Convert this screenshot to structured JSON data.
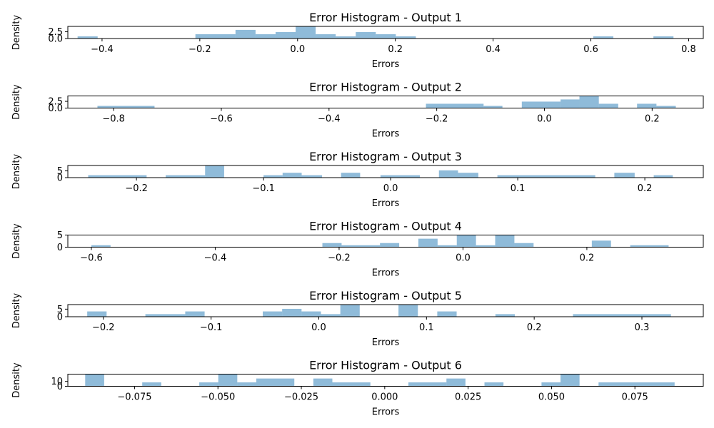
{
  "chart_data": [
    {
      "type": "bar",
      "title": "Error Histogram - Output 1",
      "xlabel": "Errors",
      "ylabel": "Density",
      "xlim": [
        -0.47,
        0.83
      ],
      "ylim": [
        0,
        4.5
      ],
      "xticks": [
        {
          "value": -0.4,
          "label": "−0.4"
        },
        {
          "value": -0.2,
          "label": "−0.2"
        },
        {
          "value": 0.0,
          "label": "0.0"
        },
        {
          "value": 0.2,
          "label": "0.2"
        },
        {
          "value": 0.4,
          "label": "0.4"
        },
        {
          "value": 0.6,
          "label": "0.6"
        },
        {
          "value": 0.8,
          "label": "0.8"
        }
      ],
      "yticks": [
        {
          "value": 0,
          "label": "0.0"
        },
        {
          "value": 2.5,
          "label": "2.5"
        }
      ],
      "bins": [
        {
          "x0": -0.45,
          "x1": -0.409,
          "y": 0.8
        },
        {
          "x0": -0.209,
          "x1": -0.127,
          "y": 1.6
        },
        {
          "x0": -0.127,
          "x1": -0.086,
          "y": 3.2
        },
        {
          "x0": -0.086,
          "x1": -0.045,
          "y": 1.6
        },
        {
          "x0": -0.045,
          "x1": -0.004,
          "y": 2.4
        },
        {
          "x0": -0.004,
          "x1": 0.037,
          "y": 4.5
        },
        {
          "x0": 0.037,
          "x1": 0.078,
          "y": 1.6
        },
        {
          "x0": 0.078,
          "x1": 0.119,
          "y": 0.8
        },
        {
          "x0": 0.119,
          "x1": 0.16,
          "y": 2.4
        },
        {
          "x0": 0.16,
          "x1": 0.201,
          "y": 1.6
        },
        {
          "x0": 0.201,
          "x1": 0.242,
          "y": 0.8
        },
        {
          "x0": 0.605,
          "x1": 0.646,
          "y": 0.8
        },
        {
          "x0": 0.728,
          "x1": 0.769,
          "y": 0.8
        }
      ]
    },
    {
      "type": "bar",
      "title": "Error Histogram - Output 2",
      "xlabel": "Errors",
      "ylabel": "Density",
      "xlim": [
        -0.885,
        0.295
      ],
      "ylim": [
        0,
        4.5
      ],
      "xticks": [
        {
          "value": -0.8,
          "label": "−0.8"
        },
        {
          "value": -0.6,
          "label": "−0.6"
        },
        {
          "value": -0.4,
          "label": "−0.4"
        },
        {
          "value": -0.2,
          "label": "−0.2"
        },
        {
          "value": 0.0,
          "label": "0.0"
        },
        {
          "value": 0.2,
          "label": "0.2"
        }
      ],
      "yticks": [
        {
          "value": 0,
          "label": "0.0"
        },
        {
          "value": 2.5,
          "label": "2.5"
        }
      ],
      "bins": [
        {
          "x0": -0.83,
          "x1": -0.724,
          "y": 0.8
        },
        {
          "x0": -0.22,
          "x1": -0.113,
          "y": 1.6
        },
        {
          "x0": -0.113,
          "x1": -0.078,
          "y": 0.8
        },
        {
          "x0": -0.042,
          "x1": 0.03,
          "y": 2.4
        },
        {
          "x0": 0.03,
          "x1": 0.065,
          "y": 3.2
        },
        {
          "x0": 0.065,
          "x1": 0.101,
          "y": 4.5
        },
        {
          "x0": 0.101,
          "x1": 0.137,
          "y": 1.6
        },
        {
          "x0": 0.172,
          "x1": 0.208,
          "y": 1.6
        },
        {
          "x0": 0.208,
          "x1": 0.244,
          "y": 0.8
        }
      ]
    },
    {
      "type": "bar",
      "title": "Error Histogram - Output 3",
      "xlabel": "Errors",
      "ylabel": "Density",
      "xlim": [
        -0.254,
        0.246
      ],
      "ylim": [
        0,
        9
      ],
      "xticks": [
        {
          "value": -0.2,
          "label": "−0.2"
        },
        {
          "value": -0.1,
          "label": "−0.1"
        },
        {
          "value": 0.0,
          "label": "0.0"
        },
        {
          "value": 0.1,
          "label": "0.1"
        },
        {
          "value": 0.2,
          "label": "0.2"
        }
      ],
      "yticks": [
        {
          "value": 0,
          "label": "0"
        },
        {
          "value": 5,
          "label": "5"
        }
      ],
      "bins": [
        {
          "x0": -0.238,
          "x1": -0.192,
          "y": 1.8
        },
        {
          "x0": -0.177,
          "x1": -0.146,
          "y": 1.8
        },
        {
          "x0": -0.146,
          "x1": -0.131,
          "y": 9
        },
        {
          "x0": -0.1,
          "x1": -0.085,
          "y": 1.8
        },
        {
          "x0": -0.085,
          "x1": -0.07,
          "y": 3.6
        },
        {
          "x0": -0.07,
          "x1": -0.054,
          "y": 1.8
        },
        {
          "x0": -0.039,
          "x1": -0.024,
          "y": 3.6
        },
        {
          "x0": -0.008,
          "x1": 0.023,
          "y": 1.8
        },
        {
          "x0": 0.038,
          "x1": 0.053,
          "y": 5.4
        },
        {
          "x0": 0.053,
          "x1": 0.069,
          "y": 3.6
        },
        {
          "x0": 0.084,
          "x1": 0.161,
          "y": 1.8
        },
        {
          "x0": 0.176,
          "x1": 0.192,
          "y": 3.6
        },
        {
          "x0": 0.207,
          "x1": 0.222,
          "y": 1.8
        }
      ]
    },
    {
      "type": "bar",
      "title": "Error Histogram - Output 4",
      "xlabel": "Errors",
      "ylabel": "Density",
      "xlim": [
        -0.638,
        0.388
      ],
      "ylim": [
        0,
        5
      ],
      "xticks": [
        {
          "value": -0.6,
          "label": "−0.6"
        },
        {
          "value": -0.4,
          "label": "−0.4"
        },
        {
          "value": -0.2,
          "label": "−0.2"
        },
        {
          "value": 0.0,
          "label": "0.0"
        },
        {
          "value": 0.2,
          "label": "0.2"
        }
      ],
      "yticks": [
        {
          "value": 0,
          "label": "0"
        },
        {
          "value": 5,
          "label": "5"
        }
      ],
      "bins": [
        {
          "x0": -0.6,
          "x1": -0.569,
          "y": 0.8
        },
        {
          "x0": -0.227,
          "x1": -0.196,
          "y": 1.7
        },
        {
          "x0": -0.196,
          "x1": -0.134,
          "y": 0.8
        },
        {
          "x0": -0.134,
          "x1": -0.103,
          "y": 1.7
        },
        {
          "x0": -0.072,
          "x1": -0.041,
          "y": 3.5
        },
        {
          "x0": -0.041,
          "x1": -0.01,
          "y": 0.8
        },
        {
          "x0": -0.01,
          "x1": 0.021,
          "y": 5
        },
        {
          "x0": 0.021,
          "x1": 0.052,
          "y": 0.8
        },
        {
          "x0": 0.052,
          "x1": 0.083,
          "y": 5
        },
        {
          "x0": 0.083,
          "x1": 0.114,
          "y": 1.7
        },
        {
          "x0": 0.208,
          "x1": 0.239,
          "y": 2.7
        },
        {
          "x0": 0.27,
          "x1": 0.332,
          "y": 0.8
        }
      ]
    },
    {
      "type": "bar",
      "title": "Error Histogram - Output 5",
      "xlabel": "Errors",
      "ylabel": "Density",
      "xlim": [
        -0.233,
        0.357
      ],
      "ylim": [
        0,
        8
      ],
      "xticks": [
        {
          "value": -0.2,
          "label": "−0.2"
        },
        {
          "value": -0.1,
          "label": "−0.1"
        },
        {
          "value": 0.0,
          "label": "0.0"
        },
        {
          "value": 0.1,
          "label": "0.1"
        },
        {
          "value": 0.2,
          "label": "0.2"
        },
        {
          "value": 0.3,
          "label": "0.3"
        }
      ],
      "yticks": [
        {
          "value": 0,
          "label": "0"
        },
        {
          "value": 5,
          "label": "5"
        }
      ],
      "bins": [
        {
          "x0": -0.215,
          "x1": -0.197,
          "y": 3.5
        },
        {
          "x0": -0.161,
          "x1": -0.124,
          "y": 1.7
        },
        {
          "x0": -0.124,
          "x1": -0.106,
          "y": 3.5
        },
        {
          "x0": -0.052,
          "x1": -0.034,
          "y": 3.5
        },
        {
          "x0": -0.034,
          "x1": -0.016,
          "y": 5.2
        },
        {
          "x0": -0.016,
          "x1": 0.002,
          "y": 3.5
        },
        {
          "x0": 0.002,
          "x1": 0.02,
          "y": 1.7
        },
        {
          "x0": 0.02,
          "x1": 0.038,
          "y": 8
        },
        {
          "x0": 0.074,
          "x1": 0.092,
          "y": 8
        },
        {
          "x0": 0.11,
          "x1": 0.128,
          "y": 3.5
        },
        {
          "x0": 0.164,
          "x1": 0.182,
          "y": 1.7
        },
        {
          "x0": 0.236,
          "x1": 0.327,
          "y": 1.7
        }
      ]
    },
    {
      "type": "bar",
      "title": "Error Histogram - Output 6",
      "xlabel": "Errors",
      "ylabel": "Density",
      "xlim": [
        -0.095,
        0.0955
      ],
      "ylim": [
        0,
        25
      ],
      "xticks": [
        {
          "value": -0.075,
          "label": "−0.075"
        },
        {
          "value": -0.05,
          "label": "−0.050"
        },
        {
          "value": -0.025,
          "label": "−0.025"
        },
        {
          "value": 0.0,
          "label": "0.000"
        },
        {
          "value": 0.025,
          "label": "0.025"
        },
        {
          "value": 0.05,
          "label": "0.050"
        },
        {
          "value": 0.075,
          "label": "0.075"
        }
      ],
      "yticks": [
        {
          "value": 0,
          "label": "0"
        },
        {
          "value": 10,
          "label": "10"
        }
      ],
      "bins": [
        {
          "x0": -0.0898,
          "x1": -0.0841,
          "y": 25
        },
        {
          "x0": -0.0727,
          "x1": -0.067,
          "y": 8
        },
        {
          "x0": -0.0556,
          "x1": -0.0499,
          "y": 8
        },
        {
          "x0": -0.0499,
          "x1": -0.0442,
          "y": 25
        },
        {
          "x0": -0.0442,
          "x1": -0.0385,
          "y": 8
        },
        {
          "x0": -0.0385,
          "x1": -0.0271,
          "y": 16
        },
        {
          "x0": -0.0214,
          "x1": -0.0157,
          "y": 16
        },
        {
          "x0": -0.0157,
          "x1": -0.0043,
          "y": 8
        },
        {
          "x0": 0.0071,
          "x1": 0.0185,
          "y": 8
        },
        {
          "x0": 0.0185,
          "x1": 0.0242,
          "y": 16
        },
        {
          "x0": 0.0299,
          "x1": 0.0356,
          "y": 8
        },
        {
          "x0": 0.047,
          "x1": 0.0527,
          "y": 8
        },
        {
          "x0": 0.0527,
          "x1": 0.0584,
          "y": 25
        },
        {
          "x0": 0.0641,
          "x1": 0.0869,
          "y": 8
        }
      ]
    }
  ]
}
